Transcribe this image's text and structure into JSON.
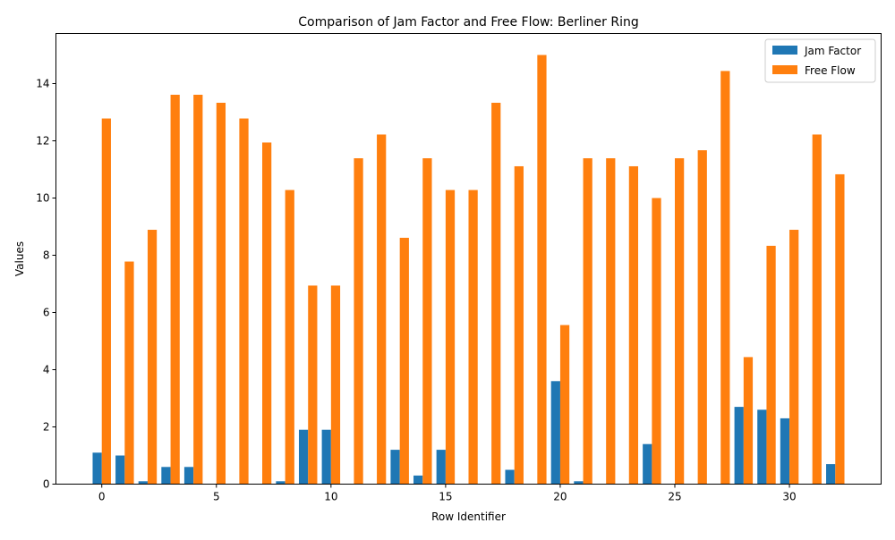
{
  "chart_data": {
    "type": "bar",
    "title": "Comparison of Jam Factor and Free Flow: Berliner Ring",
    "xlabel": "Row Identifier",
    "ylabel": "Values",
    "x": [
      0,
      1,
      2,
      3,
      4,
      5,
      6,
      7,
      8,
      9,
      10,
      11,
      12,
      13,
      14,
      15,
      16,
      17,
      18,
      19,
      20,
      21,
      22,
      23,
      24,
      25,
      26,
      27,
      28,
      29,
      30,
      31,
      32
    ],
    "xlim": [
      -2,
      34
    ],
    "ylim": [
      0,
      15.75
    ],
    "xticks": [
      0,
      5,
      10,
      15,
      20,
      25,
      30
    ],
    "yticks": [
      0,
      2,
      4,
      6,
      8,
      10,
      12,
      14
    ],
    "grid": false,
    "legend_position": "top-right",
    "series": [
      {
        "name": "Jam Factor",
        "color": "#1f77b4",
        "values": [
          1.1,
          1.0,
          0.1,
          0.6,
          0.6,
          0,
          0,
          0,
          0.1,
          1.9,
          1.9,
          0,
          0,
          1.2,
          0.3,
          1.2,
          0,
          0,
          0.5,
          0,
          3.6,
          0.1,
          0,
          0,
          1.4,
          0,
          0,
          0,
          2.7,
          2.6,
          2.3,
          0,
          0.7
        ]
      },
      {
        "name": "Free Flow",
        "color": "#ff7f0e",
        "values": [
          12.78,
          7.78,
          8.89,
          13.61,
          13.61,
          13.33,
          12.78,
          11.94,
          10.28,
          6.94,
          6.94,
          11.39,
          12.22,
          8.61,
          11.39,
          10.28,
          10.28,
          13.33,
          11.11,
          15.0,
          5.56,
          11.39,
          11.39,
          11.11,
          10.0,
          11.39,
          11.67,
          14.44,
          4.44,
          8.33,
          8.89,
          12.22,
          10.83
        ]
      }
    ]
  }
}
